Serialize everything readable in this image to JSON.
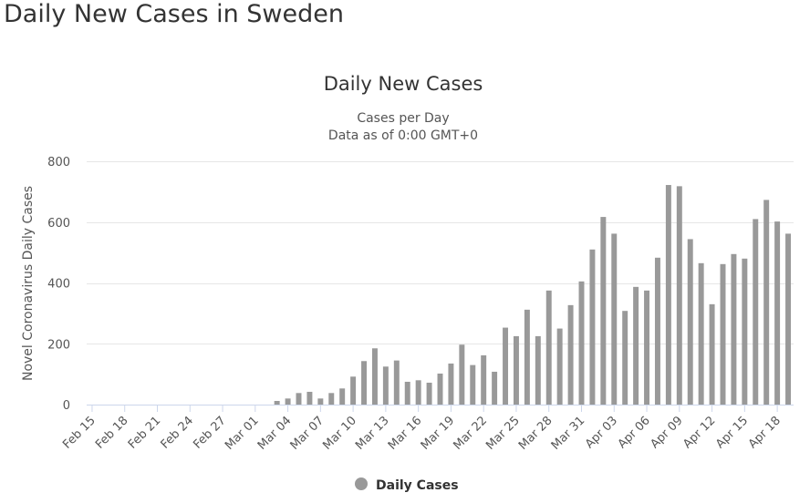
{
  "page": {
    "title": "Daily New Cases in Sweden"
  },
  "chart_data": {
    "type": "bar",
    "title": "Daily New Cases",
    "subtitle_lines": [
      "Cases per Day",
      "Data as of 0:00 GMT+0"
    ],
    "xlabel": "",
    "ylabel": "Novel Coronavirus Daily Cases",
    "ylim": [
      0,
      800
    ],
    "yticks": [
      0,
      200,
      400,
      600,
      800
    ],
    "grid": true,
    "legend": "bottom-center",
    "bar_color": "#999999",
    "categories": [
      "Feb 15",
      "Feb 16",
      "Feb 17",
      "Feb 18",
      "Feb 19",
      "Feb 20",
      "Feb 21",
      "Feb 22",
      "Feb 23",
      "Feb 24",
      "Feb 25",
      "Feb 26",
      "Feb 27",
      "Feb 28",
      "Feb 29",
      "Mar 01",
      "Mar 02",
      "Mar 03",
      "Mar 04",
      "Mar 05",
      "Mar 06",
      "Mar 07",
      "Mar 08",
      "Mar 09",
      "Mar 10",
      "Mar 11",
      "Mar 12",
      "Mar 13",
      "Mar 14",
      "Mar 15",
      "Mar 16",
      "Mar 17",
      "Mar 18",
      "Mar 19",
      "Mar 20",
      "Mar 21",
      "Mar 22",
      "Mar 23",
      "Mar 24",
      "Mar 25",
      "Mar 26",
      "Mar 27",
      "Mar 28",
      "Mar 29",
      "Mar 30",
      "Mar 31",
      "Apr 01",
      "Apr 02",
      "Apr 03",
      "Apr 04",
      "Apr 05",
      "Apr 06",
      "Apr 07",
      "Apr 08",
      "Apr 09",
      "Apr 10",
      "Apr 11",
      "Apr 12",
      "Apr 13",
      "Apr 14",
      "Apr 15",
      "Apr 16",
      "Apr 17",
      "Apr 18",
      "Apr 19"
    ],
    "tick_labels": [
      "Feb 15",
      "Feb 18",
      "Feb 21",
      "Feb 24",
      "Feb 27",
      "Mar 01",
      "Mar 04",
      "Mar 07",
      "Mar 10",
      "Mar 13",
      "Mar 16",
      "Mar 19",
      "Mar 22",
      "Mar 25",
      "Mar 28",
      "Mar 31",
      "Apr 03",
      "Apr 06",
      "Apr 09",
      "Apr 12",
      "Apr 15",
      "Apr 18"
    ],
    "series": [
      {
        "name": "Daily Cases",
        "values": [
          0,
          0,
          0,
          0,
          0,
          0,
          0,
          0,
          0,
          0,
          0,
          0,
          0,
          0,
          0,
          0,
          0,
          12,
          20,
          38,
          42,
          20,
          38,
          53,
          92,
          143,
          185,
          125,
          145,
          75,
          80,
          72,
          102,
          135,
          197,
          130,
          162,
          108,
          253,
          225,
          312,
          225,
          375,
          250,
          327,
          405,
          510,
          617,
          562,
          308,
          387,
          375,
          483,
          722,
          718,
          544,
          465,
          330,
          462,
          495,
          480,
          610,
          673,
          602,
          562
        ]
      }
    ]
  }
}
